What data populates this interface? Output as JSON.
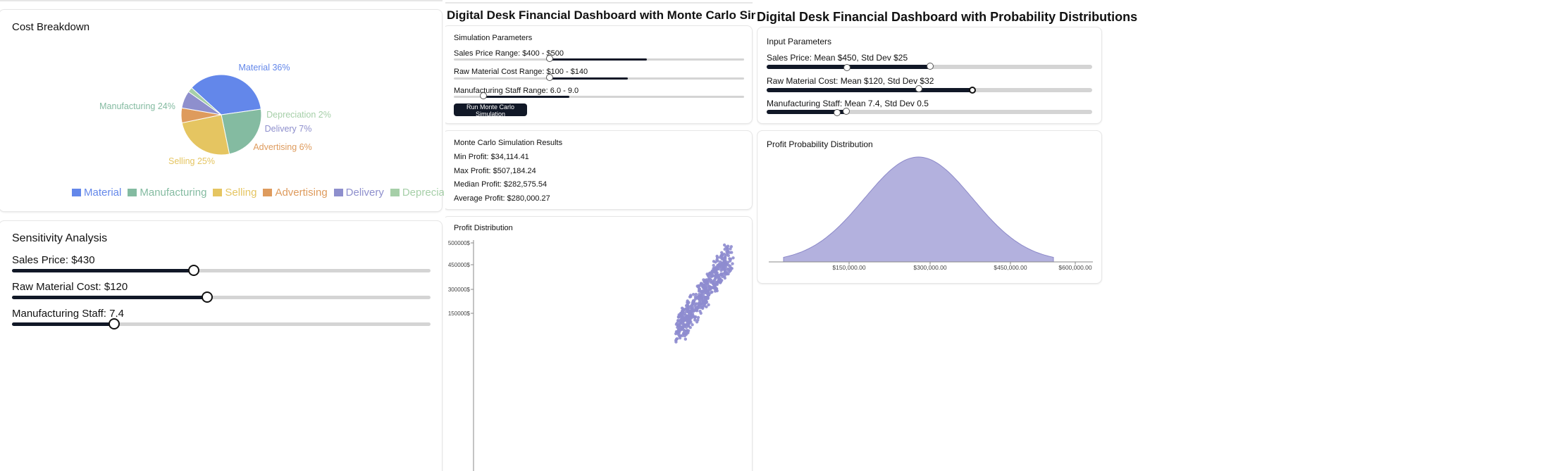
{
  "left": {
    "cost_breakdown": {
      "title": "Cost Breakdown",
      "slices": [
        {
          "label": "Material 36%",
          "name": "Material",
          "percent": 36,
          "color": "#6387ea"
        },
        {
          "label": "Manufacturing 24%",
          "name": "Manufacturing",
          "percent": 24,
          "color": "#84bba1"
        },
        {
          "label": "Selling 25%",
          "name": "Selling",
          "percent": 25,
          "color": "#e5c561"
        },
        {
          "label": "Advertising 6%",
          "name": "Advertising",
          "percent": 6,
          "color": "#de9b5d"
        },
        {
          "label": "Delivery 7%",
          "name": "Delivery",
          "percent": 7,
          "color": "#8e8fcd"
        },
        {
          "label": "Depreciation 2%",
          "name": "Depreciation",
          "percent": 2,
          "color": "#a6cfa8"
        }
      ]
    },
    "sensitivity": {
      "title": "Sensitivity Analysis",
      "sliders": [
        {
          "label": "Sales Price: $430",
          "value_fraction": 0.435
        },
        {
          "label": "Raw Material Cost: $120",
          "value_fraction": 0.468
        },
        {
          "label": "Manufacturing Staff: 7.4",
          "value_fraction": 0.245
        }
      ]
    }
  },
  "middle": {
    "header": "Digital Desk Financial Dashboard with Monte Carlo Simulation",
    "params": {
      "title": "Simulation Parameters",
      "sliders": [
        {
          "label": "Sales Price Range: $400 - $500",
          "low": 0.336,
          "high": 0.665
        },
        {
          "label": "Raw Material Cost Range: $100 - $140",
          "low": 0.336,
          "high": 0.6
        },
        {
          "label": "Manufacturing Staff Range: 6.0 - 9.0",
          "low": 0.108,
          "high": 0.398
        }
      ],
      "button_label": "Run Monte Carlo Simulation"
    },
    "results": {
      "title": "Monte Carlo Simulation Results",
      "lines": [
        "Min Profit: $34,114.41",
        "Max Profit: $507,184.24",
        "Median Profit: $282,575.54",
        "Average Profit: $280,000.27"
      ]
    },
    "distribution": {
      "title": "Profit Distribution",
      "y_ticks": [
        "500000$",
        "450000$",
        "300000$",
        "150000$"
      ]
    }
  },
  "right": {
    "header": "Digital Desk Financial Dashboard with Probability Distributions",
    "inputs": {
      "title": "Input Parameters",
      "sliders": [
        {
          "label": "Sales Price: Mean $450, Std Dev $25",
          "mean": 0.5,
          "std": 0.25
        },
        {
          "label": "Raw Material Cost: Mean $120, Std Dev $32",
          "mean": 0.465,
          "std": 0.63
        },
        {
          "label": "Manufacturing Staff: Mean 7.4, Std Dev 0.5",
          "mean": 0.245,
          "std": 0.217
        }
      ]
    },
    "profit_prob": {
      "title": "Profit Probability Distribution",
      "color": "#b3b1de",
      "stroke": "#8c89c9"
    }
  },
  "chart_data": [
    {
      "type": "pie",
      "title": "Cost Breakdown",
      "categories": [
        "Material",
        "Manufacturing",
        "Selling",
        "Advertising",
        "Delivery",
        "Depreciation"
      ],
      "values": [
        36,
        24,
        25,
        6,
        7,
        2
      ],
      "legend": "bottom"
    },
    {
      "type": "scatter",
      "title": "Profit Distribution",
      "y_tick_labels": [
        "500000$",
        "450000$",
        "300000$",
        "150000$"
      ]
    },
    {
      "type": "area",
      "title": "Profit Probability Distribution",
      "x_tick_labels": [
        "$150,000.00",
        "$300,000.00",
        "$450,000.00",
        "$600,000.00"
      ],
      "shape": "normal",
      "x_range": [
        30000,
        530000
      ],
      "mean": 280000,
      "std": 100000
    }
  ]
}
